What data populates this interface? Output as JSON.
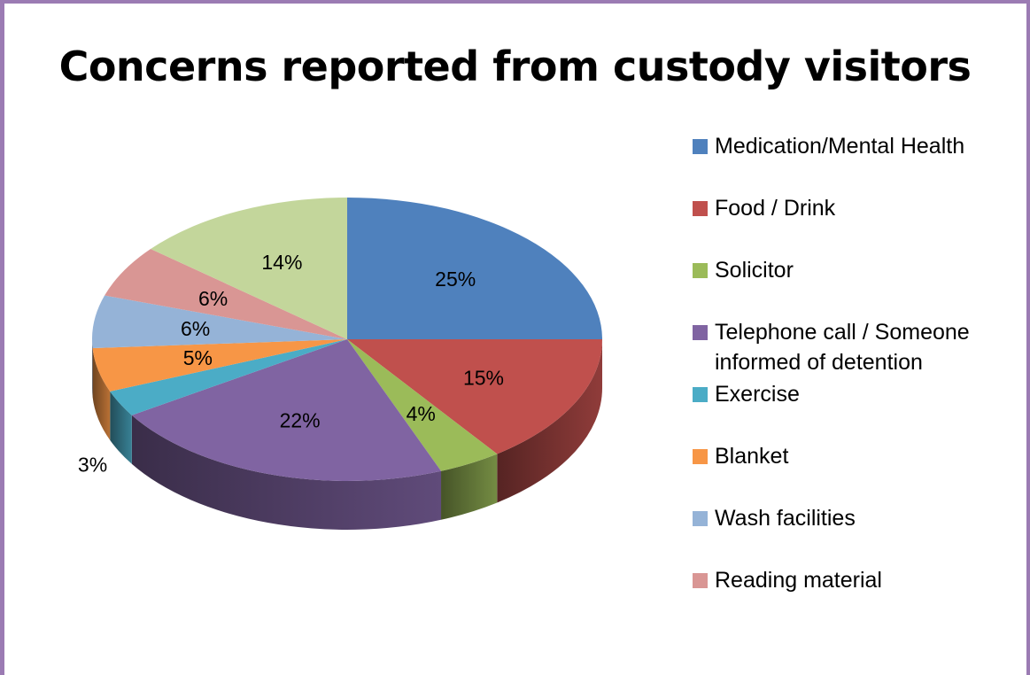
{
  "chart_data": {
    "type": "pie",
    "title": "Concerns reported from custody visitors",
    "slices": [
      {
        "name": "Medication/Mental Health",
        "value": 25,
        "label": "25%",
        "color": "#4f81bd"
      },
      {
        "name": "Food / Drink",
        "value": 15,
        "label": "15%",
        "color": "#c0504d"
      },
      {
        "name": "Solicitor",
        "value": 4,
        "label": "4%",
        "color": "#9bbb59"
      },
      {
        "name": "Telephone call / Someone informed of detention",
        "value": 22,
        "label": "22%",
        "color": "#8064a2"
      },
      {
        "name": "Exercise",
        "value": 3,
        "label": "3%",
        "color": "#4bacc6"
      },
      {
        "name": "Blanket",
        "value": 5,
        "label": "5%",
        "color": "#f79646"
      },
      {
        "name": "Wash facilities",
        "value": 6,
        "label": "6%",
        "color": "#95b3d7"
      },
      {
        "name": "Reading material",
        "value": 6,
        "label": "6%",
        "color": "#d99694"
      },
      {
        "name": "",
        "value": 14,
        "label": "14%",
        "color": "#c3d69b"
      }
    ],
    "legend_position": "right",
    "style": "3d-pie"
  }
}
